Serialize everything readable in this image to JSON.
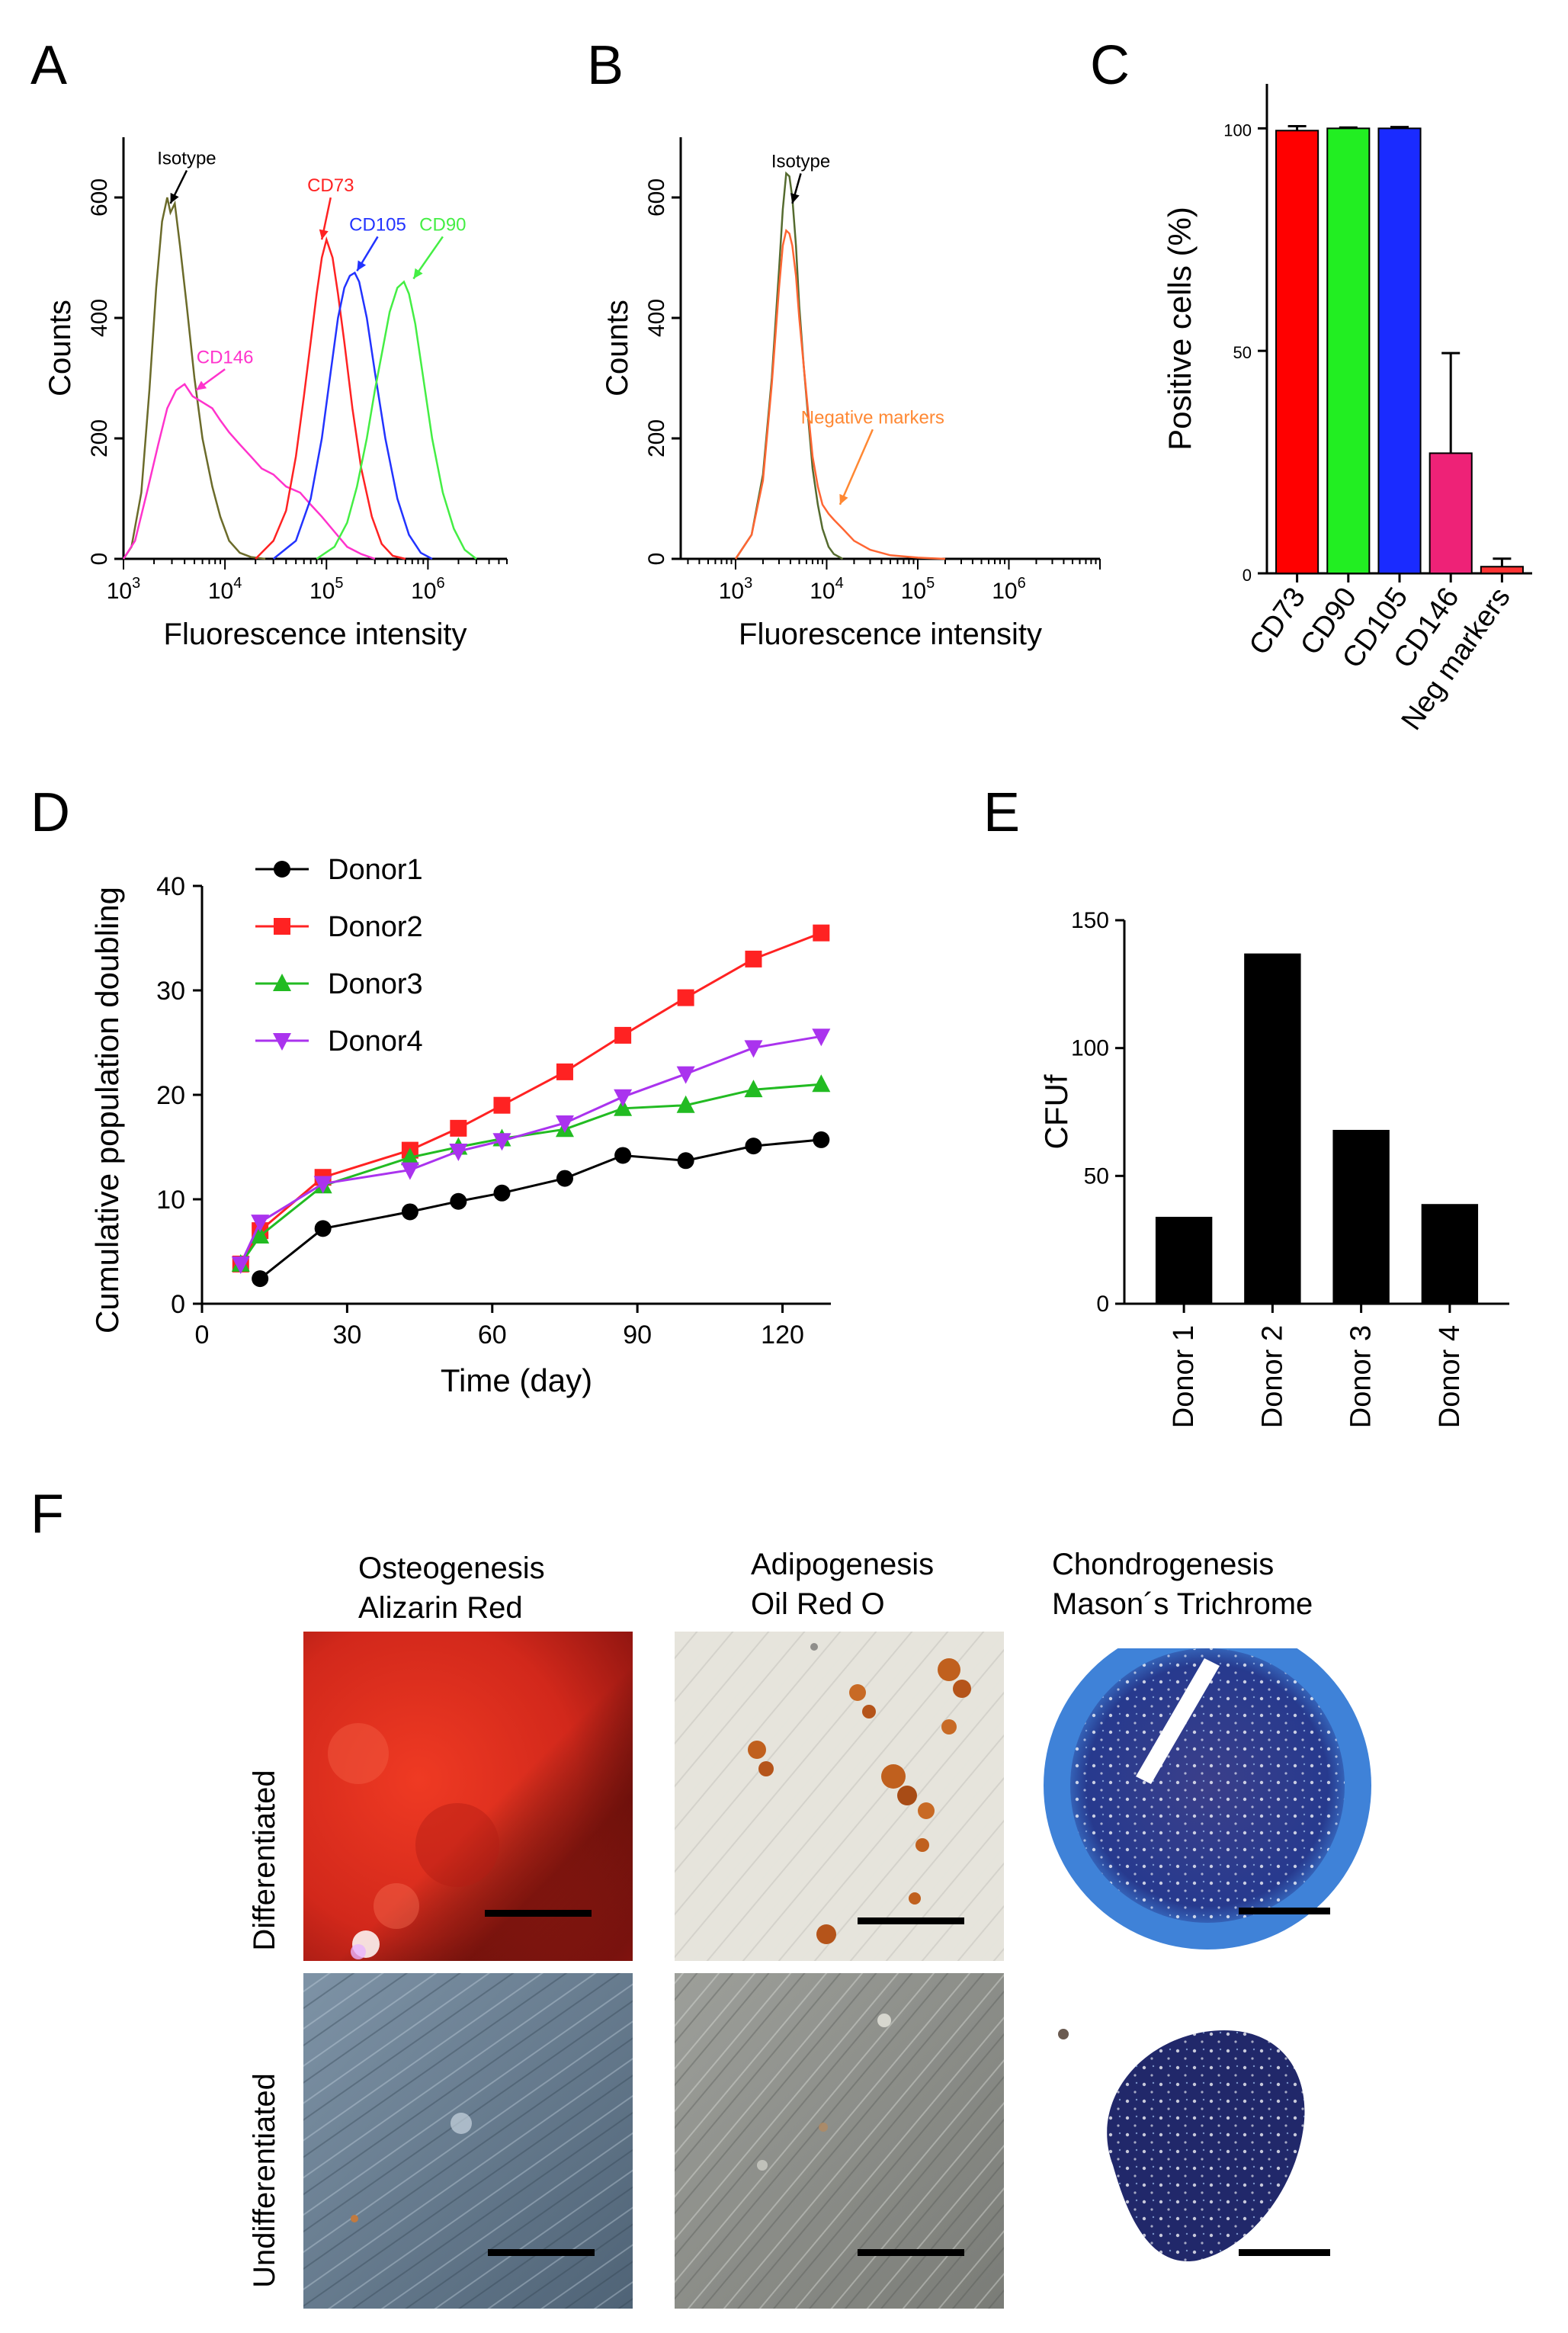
{
  "panels": {
    "A": {
      "letter": "A"
    },
    "B": {
      "letter": "B"
    },
    "C": {
      "letter": "C"
    },
    "D": {
      "letter": "D"
    },
    "E": {
      "letter": "E"
    },
    "F": {
      "letter": "F"
    }
  },
  "chart_data": [
    {
      "panel": "A",
      "type": "line",
      "xlabel": "Fluorescence intensity",
      "ylabel": "Counts",
      "xscale": "log",
      "xlim": [
        1000,
        6000000
      ],
      "ylim": [
        0,
        700
      ],
      "xticks": [
        {
          "v": 1000,
          "exp": "3"
        },
        {
          "v": 10000,
          "exp": "4"
        },
        {
          "v": 100000,
          "exp": "5"
        },
        {
          "v": 1000000,
          "exp": "6"
        }
      ],
      "yticks": [
        0,
        200,
        400,
        600
      ],
      "series": [
        {
          "name": "Isotype",
          "color": "#6b6b2a",
          "x": [
            1000,
            1200,
            1500,
            1800,
            2100,
            2400,
            2700,
            2900,
            3200,
            3600,
            4200,
            5000,
            6000,
            7500,
            9000,
            11000,
            14000,
            18000,
            25000
          ],
          "y": [
            0,
            20,
            110,
            280,
            450,
            560,
            600,
            575,
            590,
            520,
            420,
            300,
            200,
            120,
            70,
            30,
            10,
            3,
            0
          ]
        },
        {
          "name": "CD146",
          "color": "#ff33cc",
          "x": [
            1000,
            1300,
            1700,
            2200,
            2700,
            3300,
            4000,
            4800,
            6000,
            7500,
            9000,
            11000,
            14000,
            18000,
            23000,
            30000,
            40000,
            55000,
            70000,
            90000,
            120000,
            160000,
            220000,
            300000
          ],
          "y": [
            0,
            30,
            110,
            190,
            250,
            280,
            290,
            270,
            260,
            250,
            230,
            210,
            190,
            170,
            150,
            140,
            120,
            110,
            90,
            70,
            45,
            20,
            8,
            0
          ]
        },
        {
          "name": "CD73",
          "color": "#ff2222",
          "x": [
            20000,
            30000,
            40000,
            50000,
            60000,
            70000,
            80000,
            90000,
            100000,
            115000,
            130000,
            150000,
            180000,
            220000,
            280000,
            350000,
            450000,
            600000
          ],
          "y": [
            0,
            30,
            80,
            170,
            270,
            360,
            440,
            500,
            530,
            500,
            440,
            360,
            250,
            150,
            70,
            25,
            5,
            0
          ]
        },
        {
          "name": "CD105",
          "color": "#2233ff",
          "x": [
            30000,
            50000,
            70000,
            90000,
            110000,
            130000,
            150000,
            170000,
            190000,
            210000,
            250000,
            300000,
            380000,
            500000,
            650000,
            850000,
            1100000
          ],
          "y": [
            0,
            30,
            100,
            200,
            310,
            400,
            450,
            470,
            475,
            460,
            400,
            310,
            200,
            100,
            40,
            10,
            0
          ]
        },
        {
          "name": "CD90",
          "color": "#44ee44",
          "x": [
            80000,
            120000,
            160000,
            200000,
            250000,
            300000,
            360000,
            420000,
            500000,
            580000,
            650000,
            750000,
            900000,
            1100000,
            1400000,
            1800000,
            2300000,
            3000000
          ],
          "y": [
            0,
            20,
            60,
            120,
            200,
            280,
            350,
            410,
            450,
            460,
            440,
            390,
            300,
            200,
            110,
            50,
            15,
            0
          ]
        }
      ],
      "annotations": [
        {
          "text": "Isotype",
          "color": "#000000",
          "x": 4200,
          "y": 655,
          "ax": 2900,
          "ay": 590
        },
        {
          "text": "CD73",
          "color": "#ff2222",
          "x": 110000,
          "y": 610,
          "ax": 90000,
          "ay": 530
        },
        {
          "text": "CD105",
          "color": "#2233ff",
          "x": 320000,
          "y": 545,
          "ax": 200000,
          "ay": 478
        },
        {
          "text": "CD90",
          "color": "#44ee44",
          "x": 1400000,
          "y": 545,
          "ax": 720000,
          "ay": 465
        },
        {
          "text": "CD146",
          "color": "#ff33cc",
          "x": 10000,
          "y": 325,
          "ax": 5200,
          "ay": 280
        }
      ]
    },
    {
      "panel": "B",
      "type": "line",
      "xlabel": "Fluorescence intensity",
      "ylabel": "Counts",
      "xscale": "log",
      "xlim": [
        250,
        10000000
      ],
      "ylim": [
        0,
        700
      ],
      "xticks": [
        {
          "v": 1000,
          "exp": "3"
        },
        {
          "v": 10000,
          "exp": "4"
        },
        {
          "v": 100000,
          "exp": "5"
        },
        {
          "v": 1000000,
          "exp": "6"
        }
      ],
      "yticks": [
        0,
        200,
        400,
        600
      ],
      "series": [
        {
          "name": "Isotype",
          "color": "#556b2f",
          "x": [
            1000,
            1500,
            2000,
            2500,
            3000,
            3300,
            3600,
            3900,
            4200,
            4600,
            5000,
            5600,
            6300,
            7000,
            8000,
            9000,
            10500,
            12000,
            15000
          ],
          "y": [
            0,
            40,
            140,
            300,
            480,
            580,
            640,
            635,
            600,
            520,
            420,
            320,
            230,
            150,
            90,
            50,
            20,
            8,
            0
          ]
        },
        {
          "name": "Negative markers",
          "color": "#ff6633",
          "x": [
            1000,
            1500,
            2000,
            2500,
            3000,
            3300,
            3600,
            3900,
            4200,
            4600,
            5000,
            5600,
            6300,
            7000,
            8000,
            9000,
            10500,
            12000,
            15000,
            20000,
            30000,
            50000,
            100000,
            200000
          ],
          "y": [
            0,
            40,
            130,
            290,
            450,
            520,
            545,
            540,
            520,
            470,
            400,
            320,
            240,
            170,
            120,
            90,
            75,
            65,
            50,
            30,
            15,
            6,
            2,
            0
          ]
        }
      ],
      "annotations": [
        {
          "text": "Isotype",
          "color": "#000000",
          "x": 5200,
          "y": 650,
          "ax": 4200,
          "ay": 590
        },
        {
          "text": "Negative markers",
          "color": "#ff8833",
          "x": 32000,
          "y": 225,
          "ax": 14000,
          "ay": 90
        }
      ]
    },
    {
      "panel": "C",
      "type": "bar",
      "ylabel": "Positive cells (%)",
      "ylim": [
        0,
        110
      ],
      "yticks": [
        0,
        50,
        100
      ],
      "categories": [
        "CD73",
        "CD90",
        "CD105",
        "CD146",
        "Neg markers"
      ],
      "values": [
        99.5,
        100,
        100,
        27,
        1.5
      ],
      "errors": [
        1,
        0.2,
        0.3,
        22.5,
        1.8
      ],
      "colors": [
        "#ff0000",
        "#22ee22",
        "#1a2bff",
        "#ee2277",
        "#ff3333"
      ]
    },
    {
      "panel": "D",
      "type": "line",
      "xlabel": "Time (day)",
      "ylabel": "Cumulative population doubling",
      "xlim": [
        0,
        130
      ],
      "ylim": [
        0,
        40
      ],
      "xticks": [
        0,
        30,
        60,
        90,
        120
      ],
      "yticks": [
        0,
        10,
        20,
        30,
        40
      ],
      "legend": "top-left",
      "series": [
        {
          "name": "Donor1",
          "marker": "circle",
          "color": "#000000",
          "x": [
            12,
            25,
            43,
            53,
            62,
            75,
            87,
            100,
            114,
            128
          ],
          "y": [
            2.4,
            7.2,
            8.8,
            9.8,
            10.6,
            12.0,
            14.2,
            13.7,
            15.1,
            15.7
          ]
        },
        {
          "name": "Donor2",
          "marker": "square",
          "color": "#ff2222",
          "x": [
            8,
            12,
            25,
            43,
            53,
            62,
            75,
            87,
            100,
            114,
            128
          ],
          "y": [
            3.8,
            7.0,
            12.1,
            14.7,
            16.8,
            19.0,
            22.2,
            25.7,
            29.3,
            33.0,
            35.5
          ]
        },
        {
          "name": "Donor3",
          "marker": "triangle-up",
          "color": "#22bb22",
          "x": [
            8,
            12,
            25,
            43,
            53,
            62,
            75,
            87,
            100,
            114,
            128
          ],
          "y": [
            3.8,
            6.5,
            11.3,
            14.0,
            15.0,
            15.8,
            16.7,
            18.7,
            19.0,
            20.5,
            21.0
          ]
        },
        {
          "name": "Donor4",
          "marker": "triangle-down",
          "color": "#aa33ee",
          "x": [
            8,
            12,
            25,
            43,
            53,
            62,
            75,
            87,
            100,
            114,
            128
          ],
          "y": [
            3.8,
            7.8,
            11.5,
            12.8,
            14.6,
            15.6,
            17.3,
            19.8,
            22.0,
            24.5,
            25.6
          ]
        }
      ]
    },
    {
      "panel": "E",
      "type": "bar",
      "ylabel": "CFUf",
      "ylim": [
        0,
        150
      ],
      "yticks": [
        0,
        50,
        100,
        150
      ],
      "categories": [
        "Donor 1",
        "Donor 2",
        "Donor 3",
        "Donor 4"
      ],
      "values": [
        34,
        137,
        68,
        39
      ],
      "colors": [
        "#000000",
        "#000000",
        "#000000",
        "#000000"
      ]
    }
  ],
  "panelF": {
    "columns": [
      {
        "line1": "Osteogenesis",
        "line2": "Alizarin Red"
      },
      {
        "line1": "Adipogenesis",
        "line2": "Oil Red O"
      },
      {
        "line1": "Chondrogenesis",
        "line2": "Mason´s Trichrome"
      }
    ],
    "rows": [
      {
        "label": "Differentiated"
      },
      {
        "label": "Undifferentiated"
      }
    ]
  },
  "colors": {
    "alizarin_red": "#d2281b",
    "oil_red_background": "#e6e4dc",
    "lipid_droplet": "#c0601e",
    "trichrome_blue": "#2a57b0",
    "cell_culture_blue": "#5d7186",
    "cell_culture_gray": "#8a8c88"
  }
}
